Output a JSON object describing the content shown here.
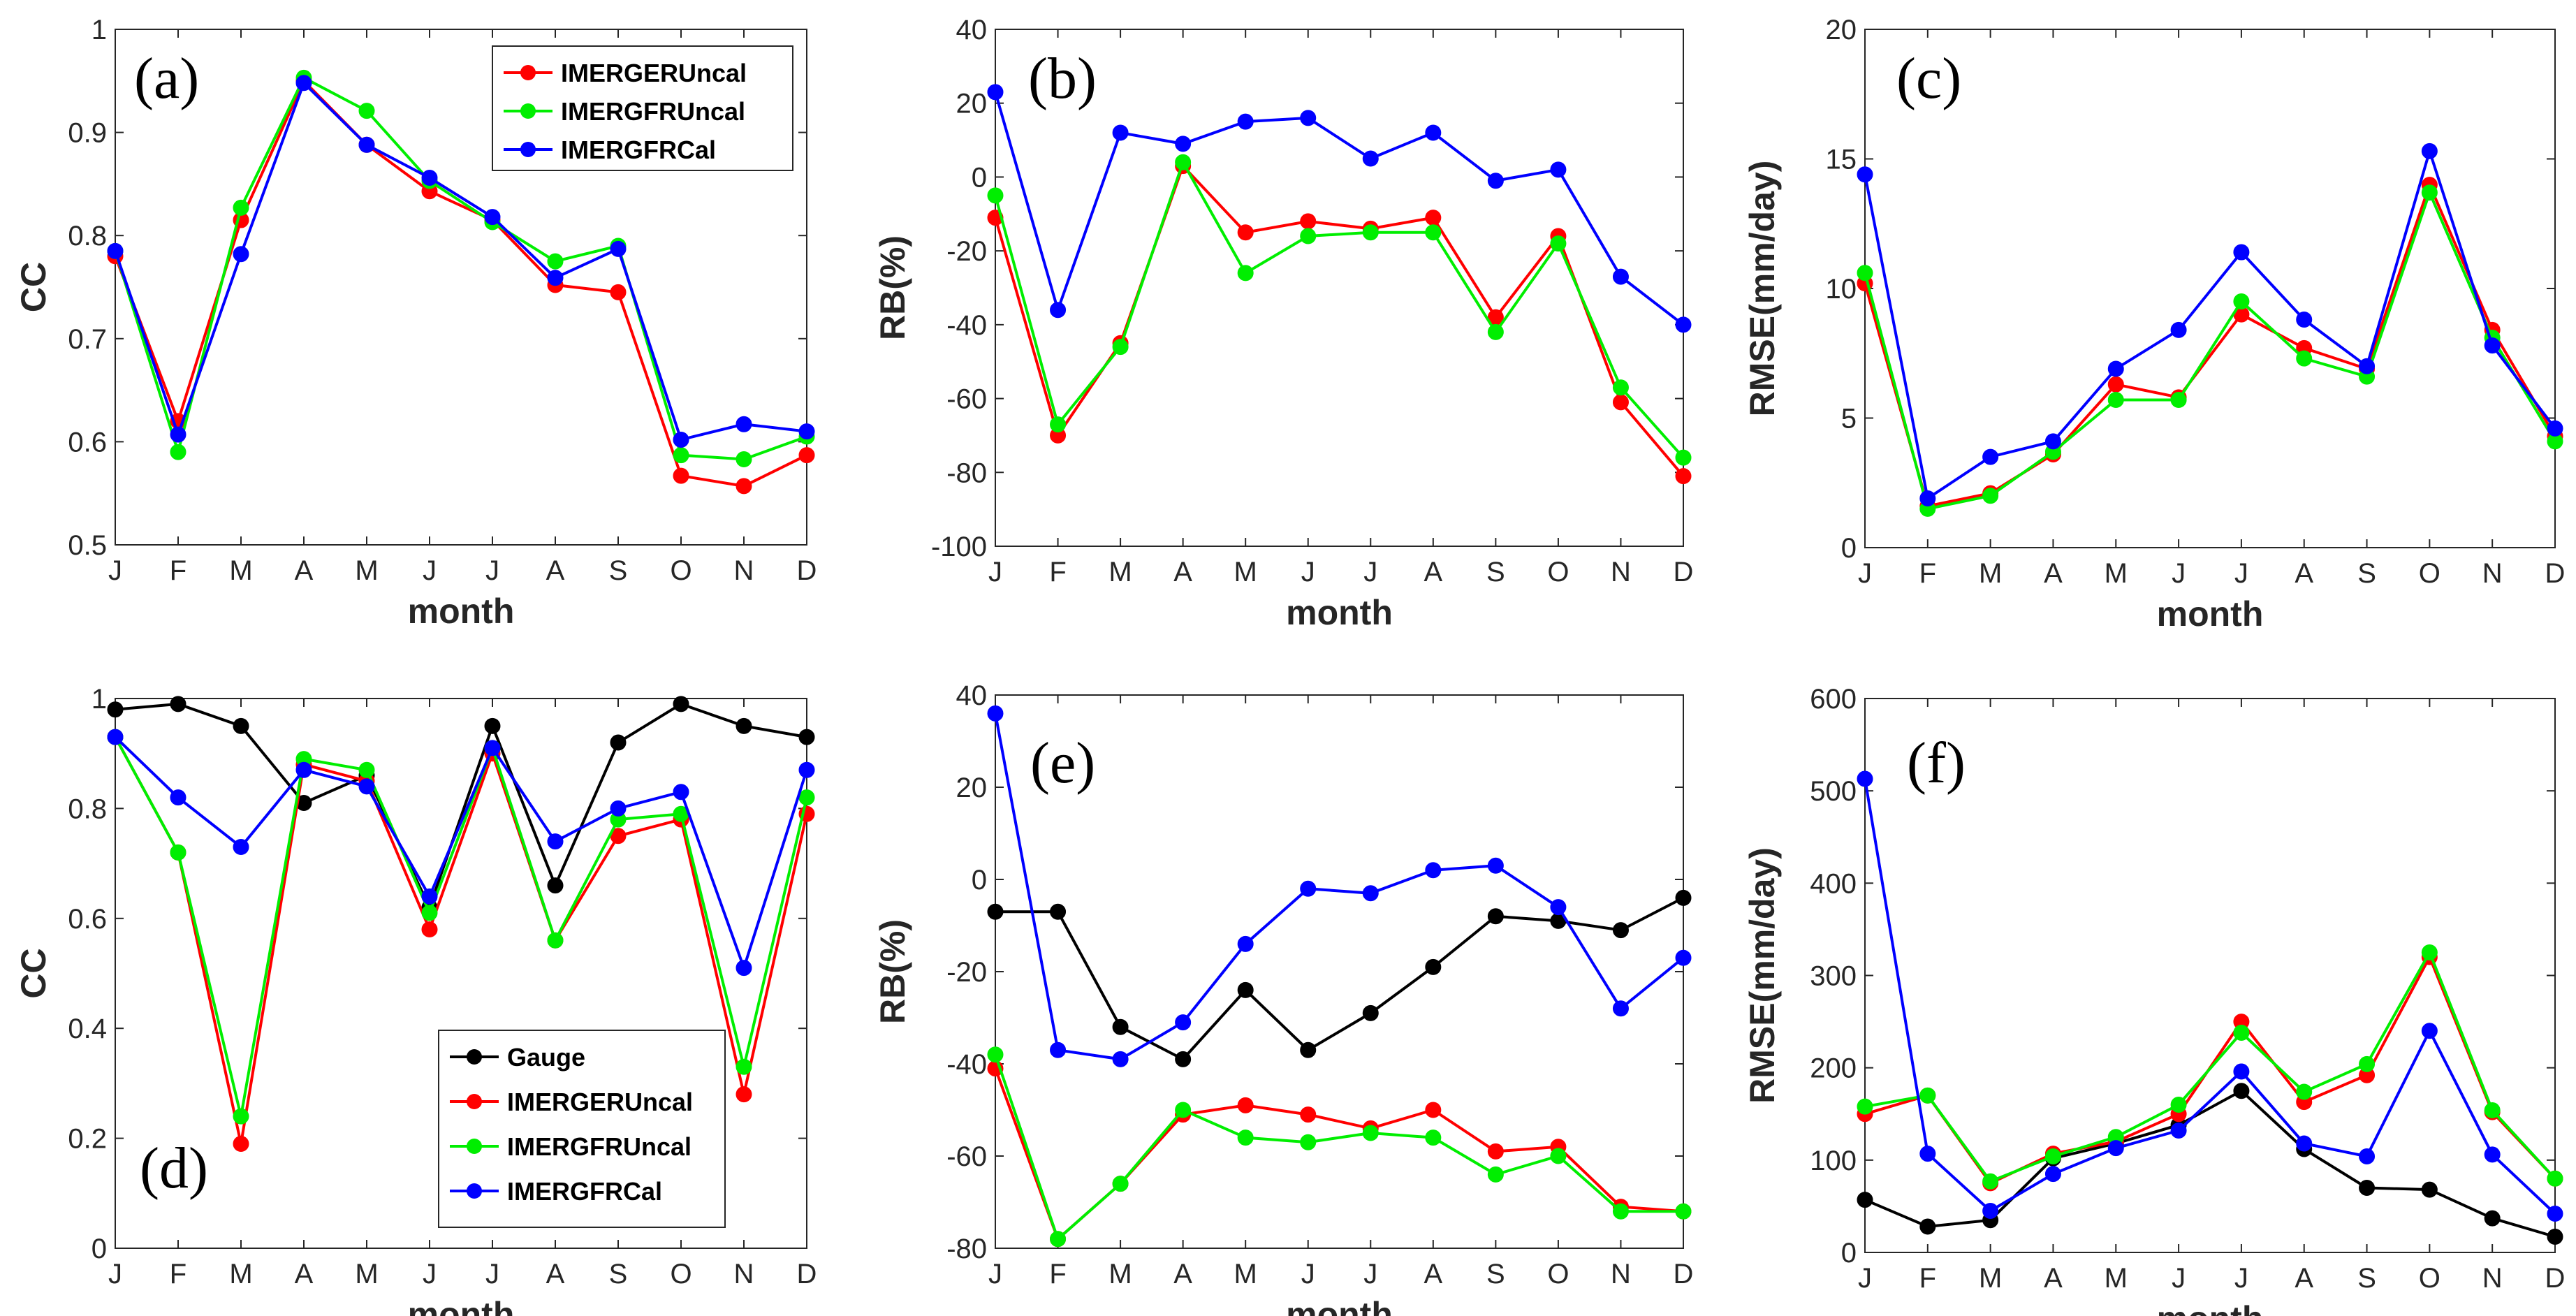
{
  "chart_data": [
    {
      "type": "line",
      "panel_label": "(a)",
      "categories": [
        "J",
        "F",
        "M",
        "A",
        "M",
        "J",
        "J",
        "A",
        "S",
        "O",
        "N",
        "D"
      ],
      "ylim": [
        0.5,
        1
      ],
      "yticks": [
        0.5,
        0.6,
        0.7,
        0.8,
        0.9,
        1
      ],
      "ytick_labels": [
        "0.5",
        "0.6",
        "0.7",
        "0.8",
        "0.9",
        "1"
      ],
      "xlabel": "month",
      "ylabel": "CC",
      "legend_position": "top-right",
      "series": [
        {
          "name": "IMERGERUncal",
          "color": "#ff0000",
          "values": [
            0.78,
            0.62,
            0.815,
            0.95,
            0.888,
            0.843,
            0.815,
            0.752,
            0.745,
            0.567,
            0.557,
            0.587
          ]
        },
        {
          "name": "IMERGFRUncal",
          "color": "#00ee00",
          "values": [
            0.785,
            0.59,
            0.827,
            0.953,
            0.921,
            0.853,
            0.813,
            0.775,
            0.79,
            0.587,
            0.583,
            0.605
          ]
        },
        {
          "name": "IMERGFRCal",
          "color": "#0000ff",
          "values": [
            0.785,
            0.607,
            0.782,
            0.948,
            0.888,
            0.856,
            0.818,
            0.759,
            0.787,
            0.602,
            0.617,
            0.61
          ]
        }
      ]
    },
    {
      "type": "line",
      "panel_label": "(b)",
      "categories": [
        "J",
        "F",
        "M",
        "A",
        "M",
        "J",
        "J",
        "A",
        "S",
        "O",
        "N",
        "D"
      ],
      "ylim": [
        -100,
        40
      ],
      "yticks": [
        -100,
        -80,
        -60,
        -40,
        -20,
        0,
        20,
        40
      ],
      "ytick_labels": [
        "-100",
        "-80",
        "-60",
        "-40",
        "-20",
        "0",
        "20",
        "40"
      ],
      "xlabel": "month",
      "ylabel": "RB(%)",
      "series": [
        {
          "name": "IMERGERUncal",
          "color": "#ff0000",
          "values": [
            -11,
            -70,
            -45,
            3,
            -15,
            -12,
            -14,
            -11,
            -38,
            -16,
            -61,
            -81
          ]
        },
        {
          "name": "IMERGFRUncal",
          "color": "#00ee00",
          "values": [
            -5,
            -67,
            -46,
            4,
            -26,
            -16,
            -15,
            -15,
            -42,
            -18,
            -57,
            -76
          ]
        },
        {
          "name": "IMERGFRCal",
          "color": "#0000ff",
          "values": [
            23,
            -36,
            12,
            9,
            15,
            16,
            5,
            12,
            -1,
            2,
            -27,
            -40
          ]
        }
      ]
    },
    {
      "type": "line",
      "panel_label": "(c)",
      "categories": [
        "J",
        "F",
        "M",
        "A",
        "M",
        "J",
        "J",
        "A",
        "S",
        "O",
        "N",
        "D"
      ],
      "ylim": [
        0,
        20
      ],
      "yticks": [
        0,
        5,
        10,
        15,
        20
      ],
      "ytick_labels": [
        "0",
        "5",
        "10",
        "15",
        "20"
      ],
      "xlabel": "month",
      "ylabel": "RMSE(mm/day)",
      "series": [
        {
          "name": "IMERGERUncal",
          "color": "#ff0000",
          "values": [
            10.2,
            1.6,
            2.1,
            3.6,
            6.3,
            5.8,
            9.0,
            7.7,
            6.9,
            14.0,
            8.4,
            4.3
          ]
        },
        {
          "name": "IMERGFRUncal",
          "color": "#00ee00",
          "values": [
            10.6,
            1.5,
            2.0,
            3.7,
            5.7,
            5.7,
            9.5,
            7.3,
            6.6,
            13.7,
            8.1,
            4.1
          ]
        },
        {
          "name": "IMERGFRCal",
          "color": "#0000ff",
          "values": [
            14.4,
            1.9,
            3.5,
            4.1,
            6.9,
            8.4,
            11.4,
            8.8,
            7.0,
            15.3,
            7.8,
            4.6
          ]
        }
      ]
    },
    {
      "type": "line",
      "panel_label": "(d)",
      "categories": [
        "J",
        "F",
        "M",
        "A",
        "M",
        "J",
        "J",
        "A",
        "S",
        "O",
        "N",
        "D"
      ],
      "ylim": [
        0,
        1
      ],
      "yticks": [
        0,
        0.2,
        0.4,
        0.6,
        0.8,
        1
      ],
      "ytick_labels": [
        "0",
        "0.2",
        "0.4",
        "0.6",
        "0.8",
        "1"
      ],
      "xlabel": "month",
      "ylabel": "CC",
      "legend_position": "bottom-left",
      "series": [
        {
          "name": "Gauge",
          "color": "#000000",
          "values": [
            0.98,
            0.99,
            0.95,
            0.81,
            0.86,
            0.62,
            0.95,
            0.66,
            0.92,
            0.99,
            0.95,
            0.93
          ]
        },
        {
          "name": "IMERGERUncal",
          "color": "#ff0000",
          "values": [
            0.93,
            0.72,
            0.19,
            0.88,
            0.85,
            0.58,
            0.9,
            0.56,
            0.75,
            0.78,
            0.28,
            0.79
          ]
        },
        {
          "name": "IMERGFRUncal",
          "color": "#00ee00",
          "values": [
            0.93,
            0.72,
            0.24,
            0.89,
            0.87,
            0.61,
            0.91,
            0.56,
            0.78,
            0.79,
            0.33,
            0.82
          ]
        },
        {
          "name": "IMERGFRCal",
          "color": "#0000ff",
          "values": [
            0.93,
            0.82,
            0.73,
            0.87,
            0.84,
            0.64,
            0.91,
            0.74,
            0.8,
            0.83,
            0.51,
            0.87
          ]
        }
      ]
    },
    {
      "type": "line",
      "panel_label": "(e)",
      "categories": [
        "J",
        "F",
        "M",
        "A",
        "M",
        "J",
        "J",
        "A",
        "S",
        "O",
        "N",
        "D"
      ],
      "ylim": [
        -80,
        40
      ],
      "yticks": [
        -80,
        -60,
        -40,
        -20,
        0,
        20,
        40
      ],
      "ytick_labels": [
        "-80",
        "-60",
        "-40",
        "-20",
        "0",
        "20",
        "40"
      ],
      "xlabel": "month",
      "ylabel": "RB(%)",
      "series": [
        {
          "name": "Gauge",
          "color": "#000000",
          "values": [
            -7,
            -7,
            -32,
            -39,
            -24,
            -37,
            -29,
            -19,
            -8,
            -9,
            -11,
            -4
          ]
        },
        {
          "name": "IMERGERUncal",
          "color": "#ff0000",
          "values": [
            -41,
            -78,
            -66,
            -51,
            -49,
            -51,
            -54,
            -50,
            -59,
            -58,
            -71,
            -72
          ]
        },
        {
          "name": "IMERGFRUncal",
          "color": "#00ee00",
          "values": [
            -38,
            -78,
            -66,
            -50,
            -56,
            -57,
            -55,
            -56,
            -64,
            -60,
            -72,
            -72
          ]
        },
        {
          "name": "IMERGFRCal",
          "color": "#0000ff",
          "values": [
            36,
            -37,
            -39,
            -31,
            -14,
            -2,
            -3,
            2,
            3,
            -6,
            -28,
            -17
          ]
        }
      ]
    },
    {
      "type": "line",
      "panel_label": "(f)",
      "categories": [
        "J",
        "F",
        "M",
        "A",
        "M",
        "J",
        "J",
        "A",
        "S",
        "O",
        "N",
        "D"
      ],
      "ylim": [
        0,
        600
      ],
      "yticks": [
        0,
        100,
        200,
        300,
        400,
        500,
        600
      ],
      "ytick_labels": [
        "0",
        "100",
        "200",
        "300",
        "400",
        "500",
        "600"
      ],
      "xlabel": "month",
      "ylabel": "RMSE(mm/day)",
      "series": [
        {
          "name": "Gauge",
          "color": "#000000",
          "values": [
            57,
            28,
            35,
            102,
            118,
            138,
            175,
            112,
            70,
            68,
            37,
            17
          ]
        },
        {
          "name": "IMERGERUncal",
          "color": "#ff0000",
          "values": [
            150,
            170,
            75,
            107,
            120,
            150,
            250,
            163,
            192,
            320,
            152,
            80
          ]
        },
        {
          "name": "IMERGFRUncal",
          "color": "#00ee00",
          "values": [
            158,
            170,
            77,
            104,
            125,
            160,
            238,
            174,
            204,
            325,
            154,
            80
          ]
        },
        {
          "name": "IMERGFRCal",
          "color": "#0000ff",
          "values": [
            513,
            107,
            45,
            85,
            113,
            132,
            196,
            118,
            104,
            240,
            106,
            42
          ]
        }
      ]
    }
  ]
}
